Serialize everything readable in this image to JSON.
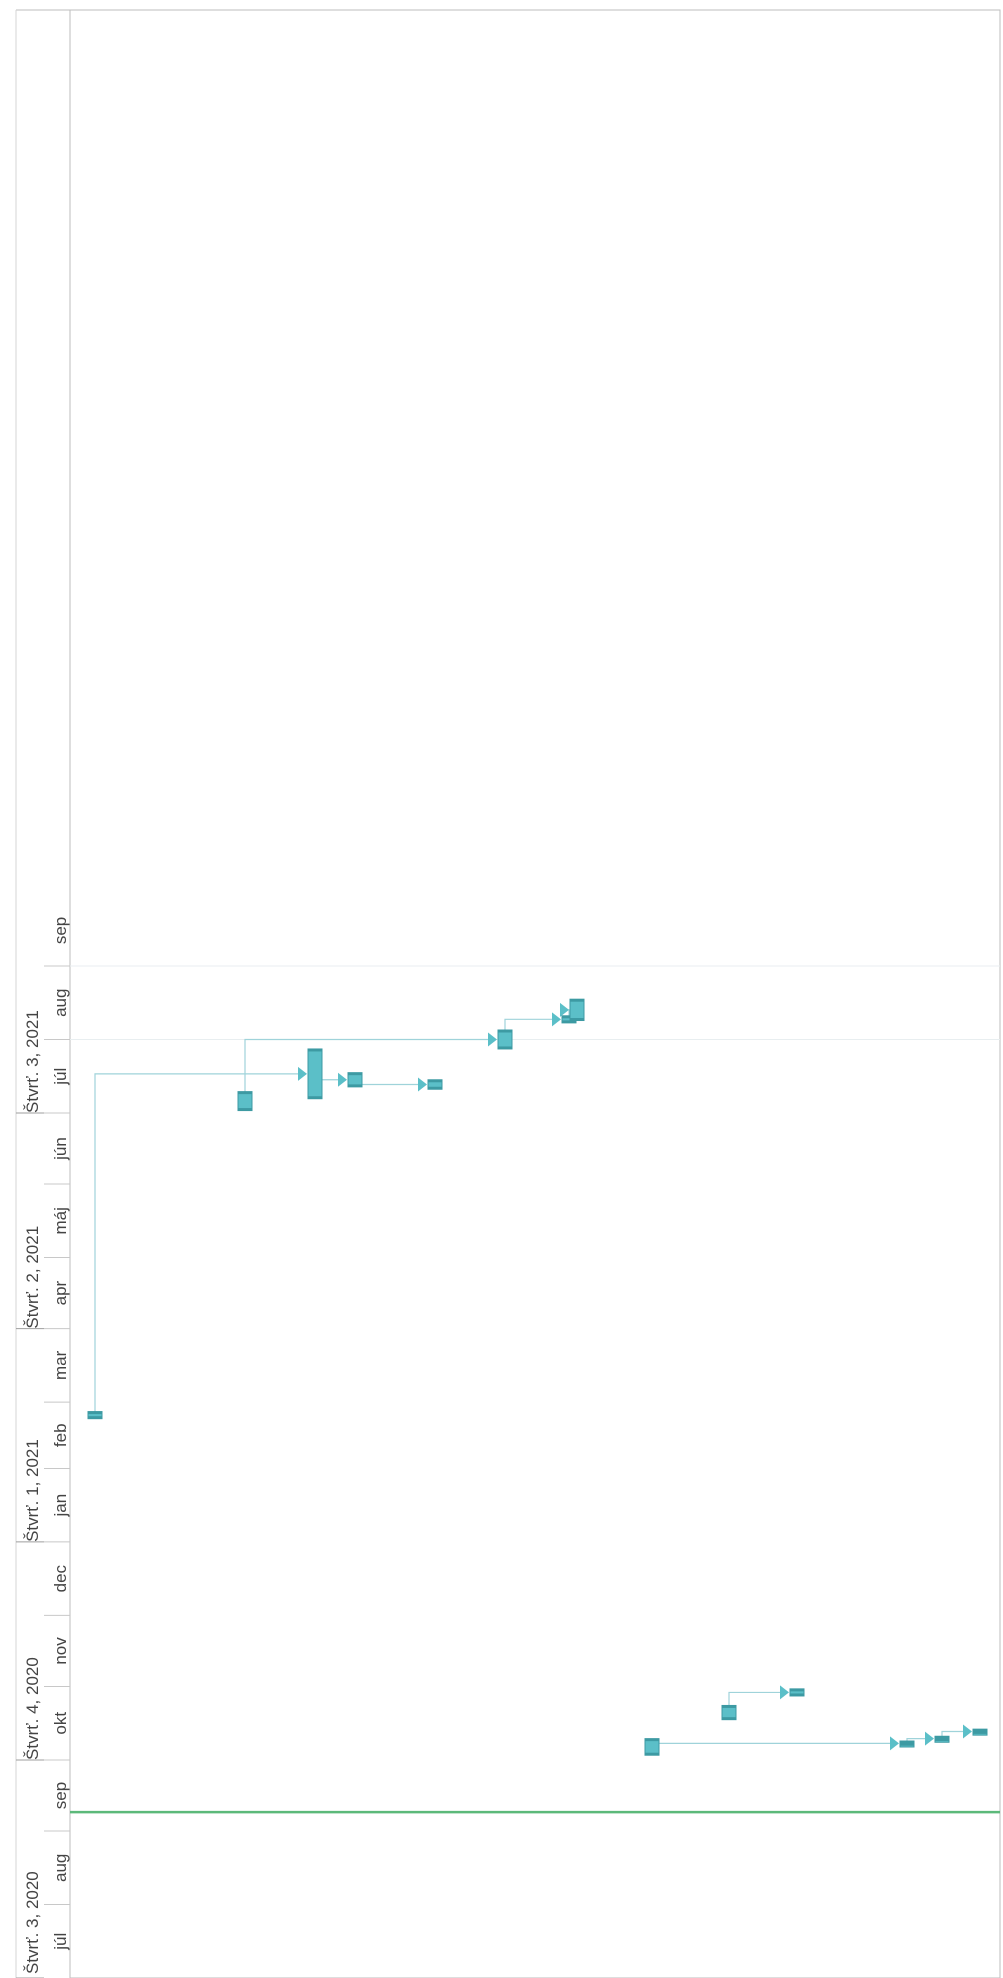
{
  "chart_data": {
    "type": "gantt",
    "orientation": "rotated-90",
    "quarters": [
      {
        "label": "Štvrť. 3, 2020"
      },
      {
        "label": "Štvrť. 4, 2020"
      },
      {
        "label": "Štvrť. 1, 2021"
      },
      {
        "label": "Štvrť. 2, 2021"
      },
      {
        "label": "Štvrť. 3, 2021"
      }
    ],
    "months": [
      {
        "label": "júl"
      },
      {
        "label": "aug"
      },
      {
        "label": "sep"
      },
      {
        "label": "okt"
      },
      {
        "label": "nov"
      },
      {
        "label": "dec"
      },
      {
        "label": "jan"
      },
      {
        "label": "feb"
      },
      {
        "label": "mar"
      },
      {
        "label": "apr"
      },
      {
        "label": "máj"
      },
      {
        "label": "jún"
      },
      {
        "label": "júl"
      },
      {
        "label": "aug"
      },
      {
        "label": "sep"
      }
    ],
    "today_marker": {
      "date": "2020-09-09",
      "color": "#5cb97a"
    },
    "colors": {
      "bar": "#5bbfc8",
      "bar_edge": "#3d9aa3",
      "connector": "#9fd3da",
      "grid": "#d9d9d9"
    },
    "tasks": [
      {
        "id": "t1",
        "start": "2020-10-03",
        "end": "2020-10-10"
      },
      {
        "id": "t2",
        "start": "2020-10-18",
        "end": "2020-10-24"
      },
      {
        "id": "t3",
        "start": "2020-10-28",
        "end": "2020-10-31"
      },
      {
        "id": "t4",
        "start": "2020-10-07",
        "end": "2020-10-09"
      },
      {
        "id": "t5",
        "start": "2020-10-09",
        "end": "2020-10-11"
      },
      {
        "id": "t6",
        "start": "2020-10-12",
        "end": "2020-10-14"
      },
      {
        "id": "t7",
        "start": "2021-02-22",
        "end": "2021-02-25"
      },
      {
        "id": "t8",
        "start": "2021-07-02",
        "end": "2021-07-10"
      },
      {
        "id": "t9",
        "start": "2021-07-07",
        "end": "2021-07-28"
      },
      {
        "id": "t10",
        "start": "2021-07-12",
        "end": "2021-07-18"
      },
      {
        "id": "t11",
        "start": "2021-07-11",
        "end": "2021-07-15"
      },
      {
        "id": "t12",
        "start": "2021-07-28",
        "end": "2021-08-05"
      },
      {
        "id": "t13",
        "start": "2021-08-08",
        "end": "2021-08-11"
      },
      {
        "id": "t14",
        "start": "2021-08-09",
        "end": "2021-08-18"
      }
    ]
  }
}
